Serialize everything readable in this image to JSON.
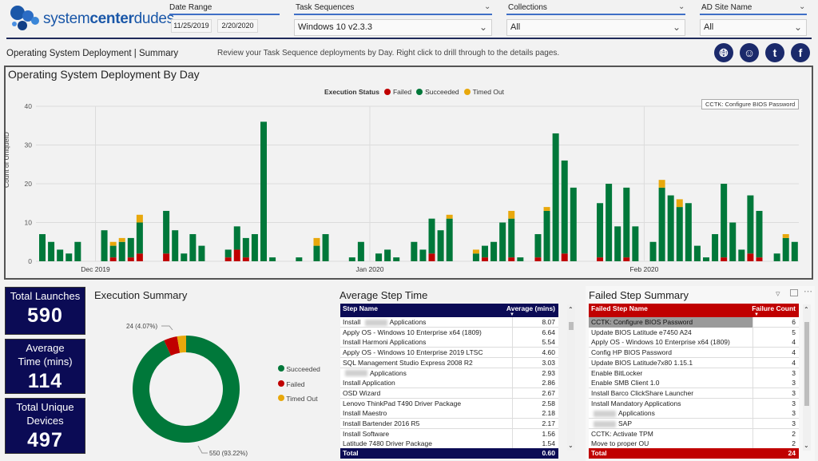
{
  "logo": {
    "text_pre": "system",
    "text_bold": "center",
    "text_post": "dudes"
  },
  "slicers": {
    "date_range": {
      "label": "Date Range",
      "start": "11/25/2019",
      "end": "2/20/2020"
    },
    "task_sequences": {
      "label": "Task Sequences",
      "value": "Windows 10 v2.3.3"
    },
    "collections": {
      "label": "Collections",
      "value": "All"
    },
    "ad_site": {
      "label": "AD Site Name",
      "value": "All"
    }
  },
  "page": {
    "subtitle": "Operating System Deployment | Summary",
    "description": "Review your Task Sequence deployments by Day. Right click to drill through to the details pages.",
    "social_icons": [
      "globe-icon",
      "user-icon",
      "twitter-icon",
      "facebook-icon"
    ]
  },
  "colors": {
    "failed": "#c00000",
    "succeeded": "#00783a",
    "timed_out": "#e8a80c",
    "navy": "#0b0b55",
    "red_header": "#c00000"
  },
  "chart_data": {
    "type": "bar",
    "stacked": true,
    "title": "Operating System Deployment By Day",
    "ylabel": "Count of UniqueID",
    "xlabel": "",
    "ylim": [
      0,
      40
    ],
    "yticks": [
      0,
      10,
      20,
      30,
      40
    ],
    "grid": true,
    "legend": {
      "title": "Execution Status",
      "placement": "top-center",
      "entries": [
        "Failed",
        "Succeeded",
        "Timed Out"
      ]
    },
    "x_ticks": [
      {
        "label": "Dec 2019",
        "date": "2019-12-01"
      },
      {
        "label": "Jan 2020",
        "date": "2020-01-01"
      },
      {
        "label": "Feb 2020",
        "date": "2020-02-01"
      }
    ],
    "points": [
      {
        "date": "2019-11-25",
        "failed": 0,
        "succeeded": 7,
        "timed_out": 0
      },
      {
        "date": "2019-11-26",
        "failed": 0,
        "succeeded": 5,
        "timed_out": 0
      },
      {
        "date": "2019-11-27",
        "failed": 0,
        "succeeded": 3,
        "timed_out": 0
      },
      {
        "date": "2019-11-28",
        "failed": 0,
        "succeeded": 2,
        "timed_out": 0
      },
      {
        "date": "2019-11-29",
        "failed": 0,
        "succeeded": 5,
        "timed_out": 0
      },
      {
        "date": "2019-12-02",
        "failed": 0,
        "succeeded": 8,
        "timed_out": 0
      },
      {
        "date": "2019-12-03",
        "failed": 1,
        "succeeded": 3,
        "timed_out": 1
      },
      {
        "date": "2019-12-04",
        "failed": 0,
        "succeeded": 5,
        "timed_out": 1
      },
      {
        "date": "2019-12-05",
        "failed": 1,
        "succeeded": 5,
        "timed_out": 0
      },
      {
        "date": "2019-12-06",
        "failed": 2,
        "succeeded": 8,
        "timed_out": 2
      },
      {
        "date": "2019-12-09",
        "failed": 2,
        "succeeded": 11,
        "timed_out": 0
      },
      {
        "date": "2019-12-10",
        "failed": 0,
        "succeeded": 8,
        "timed_out": 0
      },
      {
        "date": "2019-12-11",
        "failed": 0,
        "succeeded": 2,
        "timed_out": 0
      },
      {
        "date": "2019-12-12",
        "failed": 0,
        "succeeded": 7,
        "timed_out": 0
      },
      {
        "date": "2019-12-13",
        "failed": 0,
        "succeeded": 4,
        "timed_out": 0
      },
      {
        "date": "2019-12-16",
        "failed": 1,
        "succeeded": 2,
        "timed_out": 0
      },
      {
        "date": "2019-12-17",
        "failed": 3,
        "succeeded": 6,
        "timed_out": 0
      },
      {
        "date": "2019-12-18",
        "failed": 1,
        "succeeded": 5,
        "timed_out": 0
      },
      {
        "date": "2019-12-19",
        "failed": 0,
        "succeeded": 7,
        "timed_out": 0
      },
      {
        "date": "2019-12-20",
        "failed": 0,
        "succeeded": 36,
        "timed_out": 0
      },
      {
        "date": "2019-12-21",
        "failed": 0,
        "succeeded": 1,
        "timed_out": 0
      },
      {
        "date": "2019-12-24",
        "failed": 0,
        "succeeded": 1,
        "timed_out": 0
      },
      {
        "date": "2019-12-26",
        "failed": 0,
        "succeeded": 4,
        "timed_out": 2
      },
      {
        "date": "2019-12-27",
        "failed": 0,
        "succeeded": 7,
        "timed_out": 0
      },
      {
        "date": "2019-12-30",
        "failed": 0,
        "succeeded": 1,
        "timed_out": 0
      },
      {
        "date": "2019-12-31",
        "failed": 0,
        "succeeded": 5,
        "timed_out": 0
      },
      {
        "date": "2020-01-02",
        "failed": 0,
        "succeeded": 2,
        "timed_out": 0
      },
      {
        "date": "2020-01-03",
        "failed": 0,
        "succeeded": 3,
        "timed_out": 0
      },
      {
        "date": "2020-01-04",
        "failed": 0,
        "succeeded": 1,
        "timed_out": 0
      },
      {
        "date": "2020-01-06",
        "failed": 0,
        "succeeded": 5,
        "timed_out": 0
      },
      {
        "date": "2020-01-07",
        "failed": 0,
        "succeeded": 3,
        "timed_out": 0
      },
      {
        "date": "2020-01-08",
        "failed": 2,
        "succeeded": 9,
        "timed_out": 0
      },
      {
        "date": "2020-01-09",
        "failed": 0,
        "succeeded": 8,
        "timed_out": 0
      },
      {
        "date": "2020-01-10",
        "failed": 0,
        "succeeded": 11,
        "timed_out": 1
      },
      {
        "date": "2020-01-13",
        "failed": 0,
        "succeeded": 2,
        "timed_out": 1
      },
      {
        "date": "2020-01-14",
        "failed": 1,
        "succeeded": 3,
        "timed_out": 0
      },
      {
        "date": "2020-01-15",
        "failed": 0,
        "succeeded": 5,
        "timed_out": 0
      },
      {
        "date": "2020-01-16",
        "failed": 0,
        "succeeded": 10,
        "timed_out": 0
      },
      {
        "date": "2020-01-17",
        "failed": 1,
        "succeeded": 10,
        "timed_out": 2
      },
      {
        "date": "2020-01-18",
        "failed": 0,
        "succeeded": 1,
        "timed_out": 0
      },
      {
        "date": "2020-01-20",
        "failed": 1,
        "succeeded": 6,
        "timed_out": 0
      },
      {
        "date": "2020-01-21",
        "failed": 0,
        "succeeded": 13,
        "timed_out": 1
      },
      {
        "date": "2020-01-22",
        "failed": 0,
        "succeeded": 33,
        "timed_out": 0
      },
      {
        "date": "2020-01-23",
        "failed": 2,
        "succeeded": 24,
        "timed_out": 0
      },
      {
        "date": "2020-01-24",
        "failed": 0,
        "succeeded": 19,
        "timed_out": 0
      },
      {
        "date": "2020-01-27",
        "failed": 1,
        "succeeded": 14,
        "timed_out": 0
      },
      {
        "date": "2020-01-28",
        "failed": 0,
        "succeeded": 20,
        "timed_out": 0
      },
      {
        "date": "2020-01-29",
        "failed": 0,
        "succeeded": 9,
        "timed_out": 0
      },
      {
        "date": "2020-01-30",
        "failed": 1,
        "succeeded": 18,
        "timed_out": 0
      },
      {
        "date": "2020-01-31",
        "failed": 0,
        "succeeded": 9,
        "timed_out": 0
      },
      {
        "date": "2020-02-02",
        "failed": 0,
        "succeeded": 5,
        "timed_out": 0
      },
      {
        "date": "2020-02-03",
        "failed": 0,
        "succeeded": 19,
        "timed_out": 2
      },
      {
        "date": "2020-02-04",
        "failed": 0,
        "succeeded": 17,
        "timed_out": 0
      },
      {
        "date": "2020-02-05",
        "failed": 0,
        "succeeded": 14,
        "timed_out": 2
      },
      {
        "date": "2020-02-06",
        "failed": 0,
        "succeeded": 15,
        "timed_out": 0
      },
      {
        "date": "2020-02-07",
        "failed": 0,
        "succeeded": 4,
        "timed_out": 0
      },
      {
        "date": "2020-02-08",
        "failed": 0,
        "succeeded": 1,
        "timed_out": 0
      },
      {
        "date": "2020-02-09",
        "failed": 0,
        "succeeded": 7,
        "timed_out": 0
      },
      {
        "date": "2020-02-10",
        "failed": 1,
        "succeeded": 19,
        "timed_out": 0
      },
      {
        "date": "2020-02-11",
        "failed": 0,
        "succeeded": 10,
        "timed_out": 0
      },
      {
        "date": "2020-02-12",
        "failed": 0,
        "succeeded": 3,
        "timed_out": 0
      },
      {
        "date": "2020-02-13",
        "failed": 2,
        "succeeded": 15,
        "timed_out": 0
      },
      {
        "date": "2020-02-14",
        "failed": 1,
        "succeeded": 12,
        "timed_out": 0
      },
      {
        "date": "2020-02-16",
        "failed": 0,
        "succeeded": 2,
        "timed_out": 0
      },
      {
        "date": "2020-02-17",
        "failed": 0,
        "succeeded": 6,
        "timed_out": 1
      },
      {
        "date": "2020-02-18",
        "failed": 0,
        "succeeded": 5,
        "timed_out": 0
      }
    ]
  },
  "kpis": [
    {
      "label": "Total Launches",
      "value": "590"
    },
    {
      "label": "Average Time (mins)",
      "value": "114"
    },
    {
      "label": "Total Unique Devices",
      "value": "497"
    }
  ],
  "execution_summary": {
    "title": "Execution Summary",
    "type": "donut",
    "slices": [
      {
        "name": "Succeeded",
        "value": 550,
        "label": "550 (93.22%)"
      },
      {
        "name": "Failed",
        "value": 24,
        "label": "24 (4.07%)"
      },
      {
        "name": "Timed Out",
        "value": 16,
        "label": ""
      }
    ]
  },
  "avg_step_time": {
    "title": "Average Step Time",
    "columns": [
      "Step Name",
      "Average (mins)"
    ],
    "rows": [
      {
        "parts": [
          "Install",
          null,
          "Applications"
        ],
        "value": "8.07"
      },
      {
        "parts": [
          "Apply OS - Windows 10 Enterprise x64 (1809)"
        ],
        "value": "6.64"
      },
      {
        "parts": [
          "Install Harmoni Applications"
        ],
        "value": "5.54"
      },
      {
        "parts": [
          "Apply OS - Windows 10 Enterprise 2019 LTSC"
        ],
        "value": "4.60"
      },
      {
        "parts": [
          "SQL Management Studio Express 2008 R2"
        ],
        "value": "3.03"
      },
      {
        "parts": [
          null,
          "Applications"
        ],
        "value": "2.93"
      },
      {
        "parts": [
          "Install Application"
        ],
        "value": "2.86"
      },
      {
        "parts": [
          "OSD Wizard"
        ],
        "value": "2.67"
      },
      {
        "parts": [
          "Lenovo ThinkPad T490 Driver Package"
        ],
        "value": "2.58"
      },
      {
        "parts": [
          "Install Maestro"
        ],
        "value": "2.18"
      },
      {
        "parts": [
          "Install Bartender 2016 R5"
        ],
        "value": "2.17"
      },
      {
        "parts": [
          "Install Software"
        ],
        "value": "1.56"
      },
      {
        "parts": [
          "Latitude 7480 Driver Package"
        ],
        "value": "1.54"
      }
    ],
    "total_label": "Total",
    "total_value": "0.60"
  },
  "failed_steps": {
    "title": "Failed Step Summary",
    "columns": [
      "Failed Step Name",
      "Failure Count"
    ],
    "rows": [
      {
        "parts": [
          "CCTK: Configure BIOS Password"
        ],
        "value": "6",
        "selected": true
      },
      {
        "parts": [
          "Update BIOS Latitude e7450 A24"
        ],
        "value": "5"
      },
      {
        "parts": [
          "Apply OS - Windows 10 Enterprise x64 (1809)"
        ],
        "value": "4"
      },
      {
        "parts": [
          "Config HP BIOS Password"
        ],
        "value": "4"
      },
      {
        "parts": [
          "Update BIOS Latitude7x80 1.15.1"
        ],
        "value": "4"
      },
      {
        "parts": [
          "Enable BitLocker"
        ],
        "value": "3"
      },
      {
        "parts": [
          "Enable SMB Client 1.0"
        ],
        "value": "3"
      },
      {
        "parts": [
          "Install Barco ClickShare Launcher"
        ],
        "value": "3"
      },
      {
        "parts": [
          "Install Mandatory Applications"
        ],
        "value": "3"
      },
      {
        "parts": [
          null,
          "Applications"
        ],
        "value": "3"
      },
      {
        "parts": [
          null,
          "SAP"
        ],
        "value": "3"
      },
      {
        "parts": [
          "CCTK: Activate TPM"
        ],
        "value": "2"
      },
      {
        "parts": [
          "Move to proper OU"
        ],
        "value": "2"
      }
    ],
    "total_label": "Total",
    "total_value": "24",
    "tooltip": "CCTK: Configure BIOS Password"
  }
}
